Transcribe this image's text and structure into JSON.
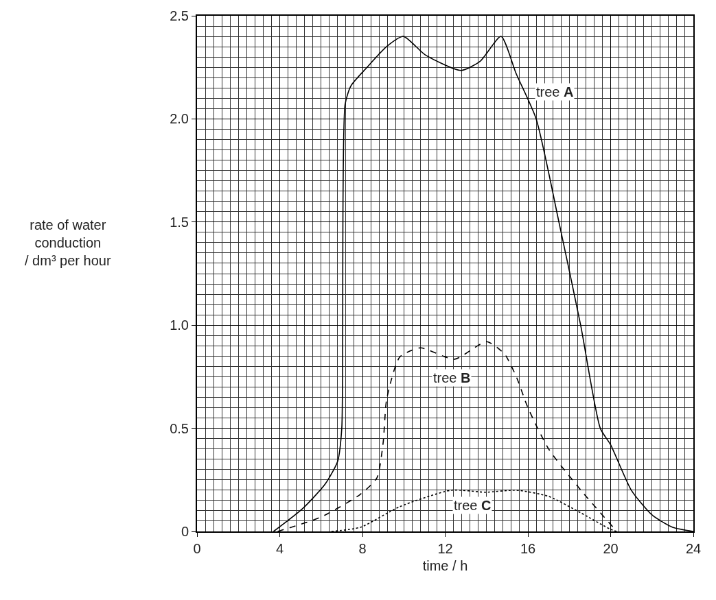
{
  "chart_data": {
    "type": "line",
    "xlabel": "time / h",
    "ylabel": "rate of water\nconduction\n/ dm³ per hour",
    "xlim": [
      0,
      24
    ],
    "xticks": [
      0,
      4,
      8,
      12,
      16,
      20,
      24
    ],
    "ylim": [
      0,
      2.5
    ],
    "yticks": [
      0,
      {
        "value": 0.5,
        "label": "0.5"
      },
      {
        "value": 1,
        "label": "1.0"
      },
      {
        "value": 1.5,
        "label": "1.5"
      },
      {
        "value": 2,
        "label": "2.0"
      },
      {
        "value": 2.5,
        "label": "2.5"
      }
    ],
    "grid": true,
    "legend": false,
    "marker": "none",
    "series": [
      {
        "name": "tree A",
        "color": "#000000",
        "line_style": "solid",
        "x": [
          3.7,
          5.1,
          6.2,
          6.8,
          7.0,
          7.16,
          7.44,
          8.22,
          9.16,
          9.98,
          11.04,
          12.76,
          13.7,
          14.7,
          15.43,
          16.4,
          17.5,
          18.55,
          19.5,
          20.0,
          21.0,
          22.0,
          23.0,
          24.0
        ],
        "values": [
          0,
          0.11,
          0.23,
          0.34,
          0.5,
          2.07,
          2.16,
          2.25,
          2.35,
          2.4,
          2.31,
          2.235,
          2.28,
          2.4,
          2.22,
          2.0,
          1.5,
          1.0,
          0.5,
          0.42,
          0.2,
          0.08,
          0.02,
          0
        ]
      },
      {
        "name": "tree B",
        "color": "#000000",
        "line_style": "dashed",
        "x": [
          3.9,
          6.0,
          7.9,
          8.7,
          9.0,
          9.17,
          9.8,
          10.8,
          12.45,
          14.0,
          14.87,
          15.44,
          16.0,
          17.0,
          18.56,
          20.3
        ],
        "values": [
          0,
          0.07,
          0.18,
          0.26,
          0.43,
          0.64,
          0.845,
          0.89,
          0.835,
          0.92,
          0.86,
          0.75,
          0.6,
          0.4,
          0.2,
          0
        ]
      },
      {
        "name": "tree C",
        "color": "#000000",
        "line_style": "dotted",
        "x": [
          6.5,
          7.9,
          9.8,
          12.3,
          13.95,
          15.44,
          17.0,
          18.56,
          20.0,
          20.3
        ],
        "values": [
          0,
          0.02,
          0.12,
          0.2,
          0.19,
          0.2,
          0.17,
          0.09,
          0.01,
          0
        ]
      }
    ]
  }
}
